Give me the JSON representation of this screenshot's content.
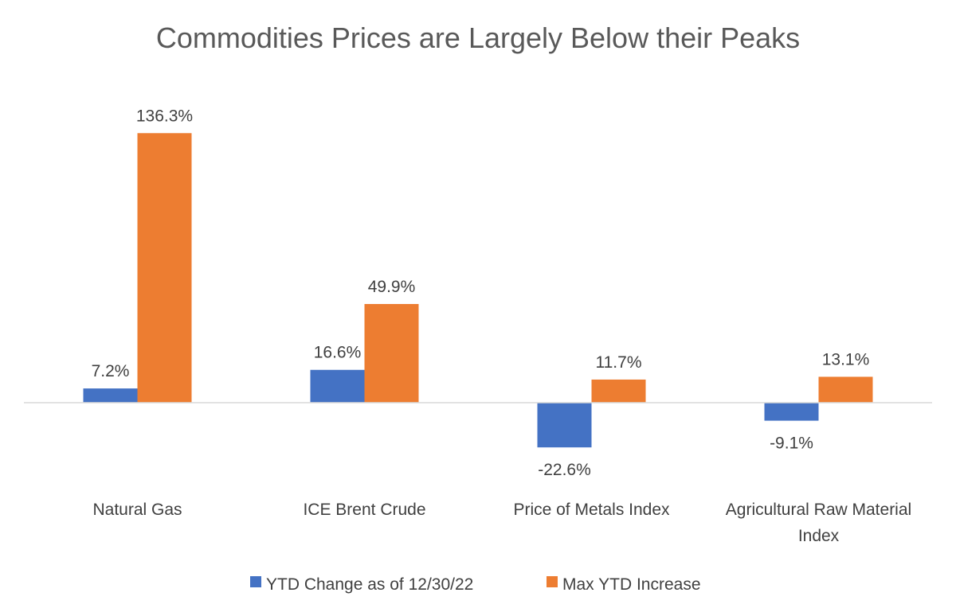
{
  "chart_data": {
    "type": "bar",
    "title": "Commodities Prices are Largely Below their Peaks",
    "categories": [
      [
        "Natural Gas"
      ],
      [
        "ICE Brent Crude"
      ],
      [
        "Price of Metals Index"
      ],
      [
        "Agricultural Raw Material",
        "Index"
      ]
    ],
    "series": [
      {
        "name": "YTD Change as of 12/30/22",
        "color": "#4472C4",
        "values": [
          7.2,
          16.6,
          -22.6,
          -9.1
        ],
        "labels": [
          "7.2%",
          "16.6%",
          "-22.6%",
          "-9.1%"
        ]
      },
      {
        "name": "Max YTD Increase",
        "color": "#ED7D31",
        "values": [
          136.3,
          49.9,
          11.7,
          13.1
        ],
        "labels": [
          "136.3%",
          "49.9%",
          "11.7%",
          "13.1%"
        ]
      }
    ],
    "ylim": [
      -40,
      140
    ],
    "gridlines": false,
    "legend_position": "bottom"
  }
}
